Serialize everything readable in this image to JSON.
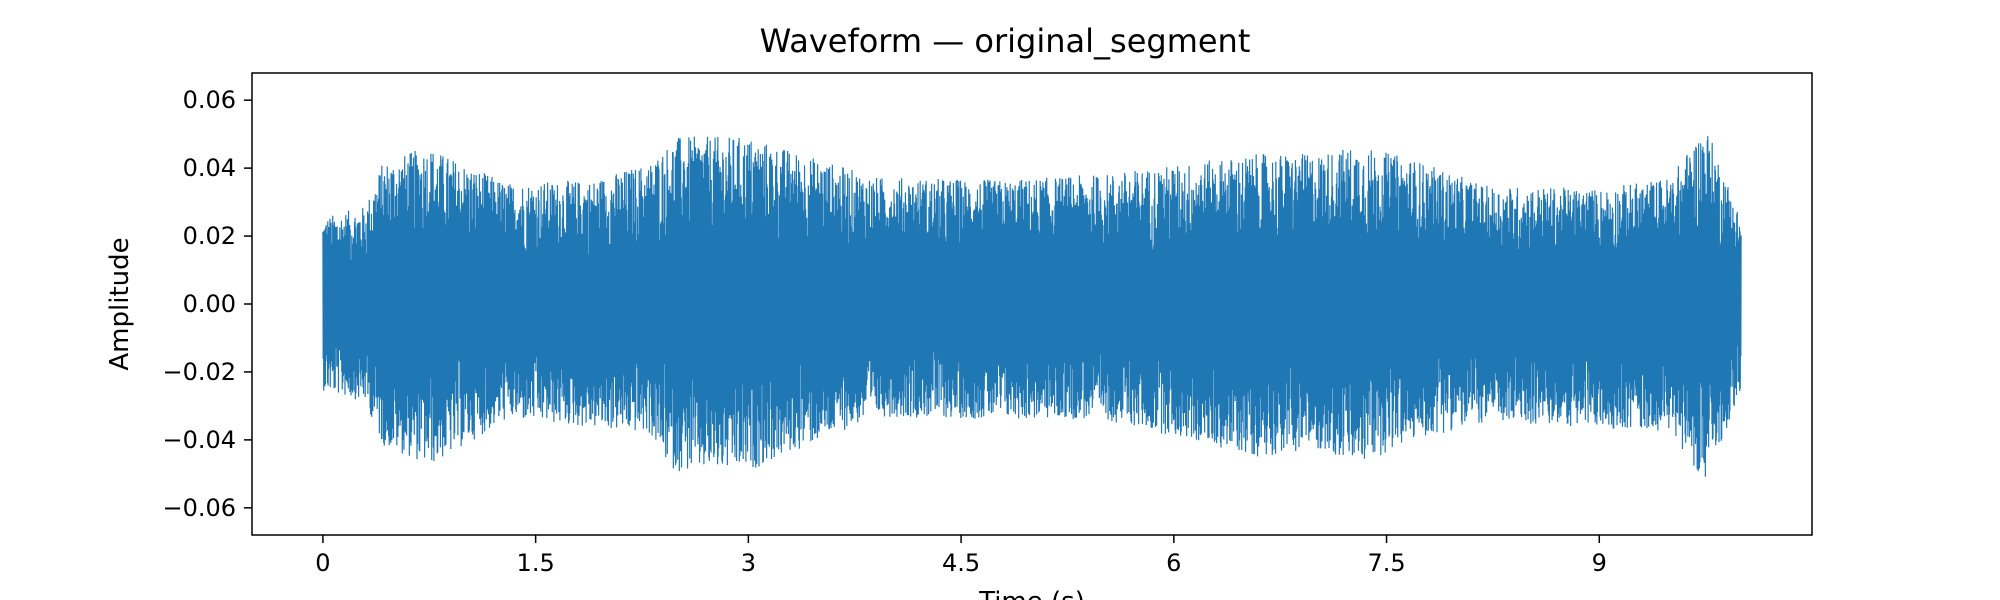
{
  "chart_data": {
    "type": "line",
    "title": "Waveform — original_segment",
    "xlabel": "Time (s)",
    "ylabel": "Amplitude",
    "xlim": [
      -0.5,
      10.5
    ],
    "ylim": [
      -0.068,
      0.068
    ],
    "x_ticks": [
      0,
      1.5,
      3,
      4.5,
      6,
      7.5,
      9
    ],
    "x_tick_labels": [
      "0",
      "1.5",
      "3",
      "4.5",
      "6",
      "7.5",
      "9"
    ],
    "y_ticks": [
      -0.06,
      -0.04,
      -0.02,
      0.0,
      0.02,
      0.04,
      0.06
    ],
    "y_tick_labels": [
      "−0.06",
      "−0.04",
      "−0.02",
      "0.00",
      "0.02",
      "0.04",
      "0.06"
    ],
    "grid": false,
    "series": [
      {
        "color": "#1f77b4",
        "x_start": 0.0,
        "x_end": 10.0,
        "envelope_peaks": [
          {
            "x": 0.0,
            "min": -0.03,
            "max": 0.03
          },
          {
            "x": 0.3,
            "min": -0.034,
            "max": 0.034
          },
          {
            "x": 0.42,
            "min": -0.049,
            "max": 0.049
          },
          {
            "x": 0.75,
            "min": -0.056,
            "max": 0.055
          },
          {
            "x": 0.8,
            "min": -0.055,
            "max": 0.053
          },
          {
            "x": 1.3,
            "min": -0.04,
            "max": 0.042
          },
          {
            "x": 1.9,
            "min": -0.043,
            "max": 0.043
          },
          {
            "x": 2.3,
            "min": -0.045,
            "max": 0.049
          },
          {
            "x": 2.45,
            "min": -0.057,
            "max": 0.056
          },
          {
            "x": 2.5,
            "min": -0.058,
            "max": 0.058
          },
          {
            "x": 3.0,
            "min": -0.058,
            "max": 0.058
          },
          {
            "x": 3.9,
            "min": -0.039,
            "max": 0.044
          },
          {
            "x": 4.8,
            "min": -0.04,
            "max": 0.043
          },
          {
            "x": 5.5,
            "min": -0.04,
            "max": 0.045
          },
          {
            "x": 6.6,
            "min": -0.053,
            "max": 0.052
          },
          {
            "x": 7.0,
            "min": -0.05,
            "max": 0.052
          },
          {
            "x": 7.3,
            "min": -0.056,
            "max": 0.055
          },
          {
            "x": 7.7,
            "min": -0.047,
            "max": 0.05
          },
          {
            "x": 8.2,
            "min": -0.041,
            "max": 0.041
          },
          {
            "x": 9.0,
            "min": -0.043,
            "max": 0.04
          },
          {
            "x": 9.5,
            "min": -0.044,
            "max": 0.044
          },
          {
            "x": 9.75,
            "min": -0.062,
            "max": 0.062
          },
          {
            "x": 10.0,
            "min": -0.03,
            "max": 0.03
          }
        ]
      }
    ]
  }
}
